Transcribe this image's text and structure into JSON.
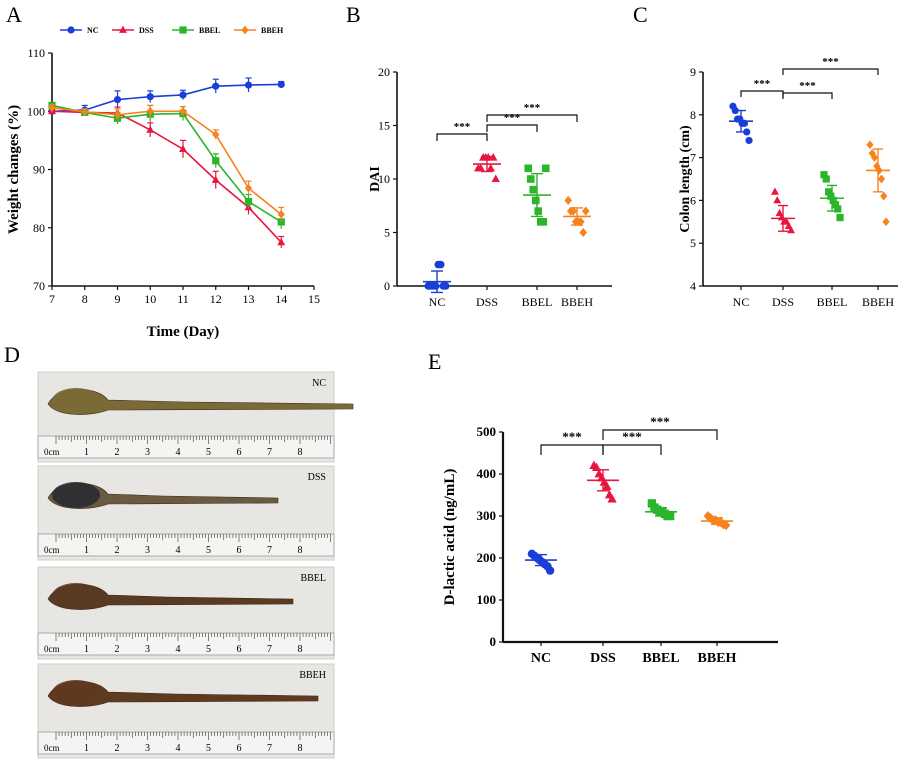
{
  "colors": {
    "NC": "#1a3fd8",
    "DSS": "#e8163f",
    "BBEL": "#2bb52b",
    "BBEH": "#f7821e"
  },
  "sig_label": "***",
  "panels": {
    "A": "A",
    "B": "B",
    "C": "C",
    "D": "D",
    "E": "E"
  },
  "panel_d": {
    "labels": [
      "NC",
      "DSS",
      "BBEL",
      "BBEH"
    ],
    "ruler_unit": "0cm",
    "ruler_ticks": [
      "1",
      "2",
      "3",
      "4",
      "5",
      "6",
      "7",
      "8"
    ]
  },
  "chart_data": [
    {
      "panel": "A",
      "type": "line",
      "xlabel": "Time (Day)",
      "ylabel": "Weight changes (%)",
      "xlim": [
        7,
        15
      ],
      "ylim": [
        70,
        110
      ],
      "xticks": [
        "7",
        "8",
        "9",
        "10",
        "11",
        "12",
        "13",
        "14",
        "15"
      ],
      "yticks": [
        "70",
        "80",
        "90",
        "100",
        "110"
      ],
      "legend": "top",
      "x": [
        7,
        8,
        9,
        10,
        11,
        12,
        13,
        14
      ],
      "series": [
        {
          "name": "NC",
          "values": [
            100,
            100.2,
            102,
            102.5,
            102.8,
            104.3,
            104.5,
            104.6
          ],
          "err": [
            0.4,
            0.8,
            1.5,
            1.0,
            0.8,
            1.2,
            1.2,
            0.5
          ]
        },
        {
          "name": "DSS",
          "values": [
            100,
            99.8,
            99.7,
            96.8,
            93.5,
            88.2,
            83.5,
            77.5
          ],
          "err": [
            0.4,
            0.5,
            1.0,
            1.2,
            1.5,
            1.5,
            1.2,
            1.0
          ]
        },
        {
          "name": "BBEL",
          "values": [
            101,
            99.8,
            98.8,
            99.5,
            99.6,
            91.5,
            84.5,
            81
          ],
          "err": [
            0.5,
            0.5,
            1.0,
            1.5,
            1.2,
            1.2,
            1.2,
            1.2
          ]
        },
        {
          "name": "BBEH",
          "values": [
            100.6,
            99.9,
            99.4,
            100,
            100,
            96,
            86.8,
            82.3
          ],
          "err": [
            0.5,
            0.5,
            1.0,
            1.0,
            0.8,
            0.8,
            1.2,
            1.2
          ]
        }
      ]
    },
    {
      "panel": "B",
      "type": "scatter",
      "ylabel": "DAI",
      "categories": [
        "NC",
        "DSS",
        "BBEL",
        "BBEH"
      ],
      "ylim": [
        0,
        20
      ],
      "yticks": [
        "0",
        "5",
        "10",
        "15",
        "20"
      ],
      "series": [
        {
          "name": "NC",
          "points": [
            0,
            0,
            0,
            0,
            2,
            2,
            0,
            0
          ],
          "mean": 0.4,
          "sd": 1.0
        },
        {
          "name": "DSS",
          "points": [
            11,
            11,
            12,
            12,
            12,
            11,
            12,
            10
          ],
          "mean": 11.4,
          "sd": 0.7
        },
        {
          "name": "BBEL",
          "points": [
            11,
            10,
            9,
            8,
            7,
            6,
            6,
            11
          ],
          "mean": 8.5,
          "sd": 2.0
        },
        {
          "name": "BBEH",
          "points": [
            8,
            7,
            7,
            6,
            6,
            6,
            5,
            7
          ],
          "mean": 6.5,
          "sd": 0.8
        }
      ],
      "comparisons": [
        [
          0,
          1
        ],
        [
          1,
          2
        ],
        [
          1,
          3
        ]
      ]
    },
    {
      "panel": "C",
      "type": "scatter",
      "ylabel": "Colon length (cm)",
      "categories": [
        "NC",
        "DSS",
        "BBEL",
        "BBEH"
      ],
      "ylim": [
        4,
        9
      ],
      "yticks": [
        "4",
        "5",
        "6",
        "7",
        "8",
        "9"
      ],
      "series": [
        {
          "name": "NC",
          "points": [
            8.2,
            8.1,
            7.9,
            7.9,
            7.8,
            7.8,
            7.6,
            7.4
          ],
          "mean": 7.85,
          "sd": 0.25
        },
        {
          "name": "DSS",
          "points": [
            6.2,
            6.0,
            5.7,
            5.6,
            5.5,
            5.5,
            5.4,
            5.3
          ],
          "mean": 5.58,
          "sd": 0.3
        },
        {
          "name": "BBEL",
          "points": [
            6.6,
            6.5,
            6.2,
            6.1,
            6.0,
            5.9,
            5.8,
            5.6
          ],
          "mean": 6.05,
          "sd": 0.3
        },
        {
          "name": "BBEH",
          "points": [
            7.3,
            7.1,
            7.0,
            6.8,
            6.7,
            6.5,
            6.1,
            5.5
          ],
          "mean": 6.7,
          "sd": 0.5
        }
      ],
      "comparisons": [
        [
          0,
          1
        ],
        [
          1,
          2
        ],
        [
          1,
          3
        ]
      ]
    },
    {
      "panel": "E",
      "type": "scatter",
      "ylabel": "D-lactic acid (ng/mL)",
      "categories": [
        "NC",
        "DSS",
        "BBEL",
        "BBEH"
      ],
      "ylim": [
        0,
        500
      ],
      "yticks": [
        "0",
        "100",
        "200",
        "300",
        "400",
        "500"
      ],
      "series": [
        {
          "name": "NC",
          "points": [
            210,
            205,
            200,
            195,
            190,
            185,
            180,
            170
          ],
          "mean": 195,
          "sd": 13
        },
        {
          "name": "DSS",
          "points": [
            420,
            415,
            400,
            390,
            380,
            370,
            350,
            340
          ],
          "mean": 385,
          "sd": 25
        },
        {
          "name": "BBEL",
          "points": [
            330,
            320,
            315,
            310,
            310,
            305,
            300,
            300
          ],
          "mean": 310,
          "sd": 10
        },
        {
          "name": "BBEH",
          "points": [
            300,
            295,
            290,
            290,
            285,
            285,
            280,
            278
          ],
          "mean": 288,
          "sd": 8
        }
      ],
      "comparisons": [
        [
          0,
          1
        ],
        [
          1,
          2
        ],
        [
          1,
          3
        ]
      ]
    }
  ]
}
